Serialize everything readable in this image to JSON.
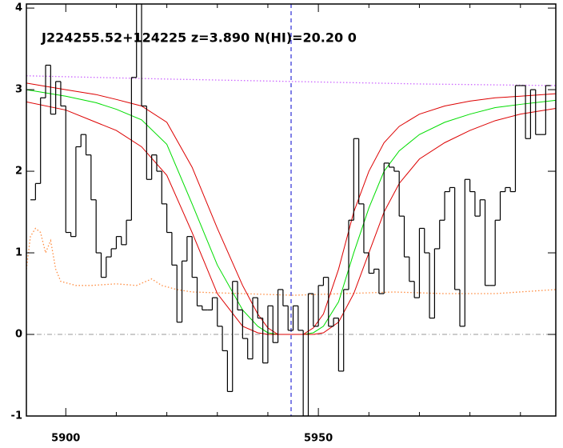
{
  "chart_data": {
    "type": "step",
    "title": "J224255.52+124225 z=3.890 N(HI)=20.20 0",
    "xlim": [
      5892.2,
      5997
    ],
    "ylim": [
      -1,
      4.05
    ],
    "xticks": [
      5900,
      5950
    ],
    "xminor_ticks": [
      5910,
      5920,
      5930,
      5940,
      5960,
      5970,
      5980,
      5990
    ],
    "yticks": [
      -1,
      0,
      1,
      2,
      3,
      4
    ],
    "spectrum": {
      "color": "#000000",
      "bins": [
        5893,
        5894,
        5895,
        5896,
        5897,
        5898,
        5899,
        5900,
        5901,
        5902,
        5903,
        5904,
        5905,
        5906,
        5907,
        5908,
        5909,
        5910,
        5911,
        5912,
        5913,
        5914,
        5915,
        5916,
        5917,
        5918,
        5919,
        5920,
        5921,
        5922,
        5923,
        5924,
        5925,
        5926,
        5927,
        5928,
        5929,
        5930,
        5931,
        5932,
        5933,
        5934,
        5935,
        5936,
        5937,
        5938,
        5939,
        5940,
        5941,
        5942,
        5943,
        5944,
        5945,
        5946,
        5947,
        5948,
        5949,
        5950,
        5951,
        5952,
        5953,
        5954,
        5955,
        5956,
        5957,
        5958,
        5959,
        5960,
        5961,
        5962,
        5963,
        5964,
        5965,
        5966,
        5967,
        5968,
        5969,
        5970,
        5971,
        5972,
        5973,
        5974,
        5975,
        5976,
        5977,
        5978,
        5979,
        5980,
        5981,
        5982,
        5983,
        5984,
        5985,
        5986,
        5987,
        5988,
        5989,
        5990,
        5991,
        5992,
        5993,
        5994,
        5995,
        5996
      ],
      "values": [
        1.65,
        1.85,
        2.9,
        3.3,
        2.7,
        3.1,
        2.8,
        1.25,
        1.2,
        2.3,
        2.45,
        2.2,
        1.65,
        1.0,
        0.7,
        0.95,
        1.05,
        1.2,
        1.1,
        1.4,
        3.15,
        4.1,
        2.8,
        1.9,
        2.2,
        2.0,
        1.6,
        1.25,
        0.85,
        0.15,
        0.9,
        1.2,
        0.7,
        0.35,
        0.3,
        0.3,
        0.45,
        0.1,
        -0.2,
        -0.7,
        0.65,
        0.3,
        -0.05,
        -0.3,
        0.45,
        0.2,
        -0.35,
        0.35,
        -0.1,
        0.55,
        0.35,
        0.05,
        0.35,
        0.05,
        -1.0,
        0.5,
        0.1,
        0.6,
        0.7,
        0.1,
        0.2,
        -0.45,
        0.55,
        1.4,
        2.4,
        1.6,
        1.0,
        0.75,
        0.8,
        0.5,
        2.1,
        2.05,
        2.0,
        1.45,
        0.95,
        0.65,
        0.45,
        1.3,
        1.0,
        0.2,
        1.05,
        1.4,
        1.75,
        1.8,
        0.55,
        0.1,
        1.9,
        1.75,
        1.45,
        1.65,
        0.6,
        0.6,
        1.4,
        1.75,
        1.8,
        1.75,
        3.05,
        3.05,
        2.4,
        3.0,
        2.45,
        2.45,
        3.05
      ]
    },
    "series": [
      {
        "color": "#cc66ff",
        "style": "dotted",
        "x": [
          5892.2,
          5920,
          5945,
          5970,
          5997
        ],
        "values": [
          3.17,
          3.13,
          3.1,
          3.07,
          3.05
        ]
      },
      {
        "color": "#ff8c40",
        "style": "dotted",
        "x": [
          5892.2,
          5893,
          5894,
          5895,
          5896,
          5897,
          5898,
          5899,
          5902,
          5905,
          5910,
          5914,
          5917,
          5919,
          5922,
          5925,
          5935,
          5945,
          5955,
          5965,
          5975,
          5985,
          5997
        ],
        "values": [
          0.8,
          1.2,
          1.3,
          1.25,
          1.0,
          1.15,
          0.8,
          0.65,
          0.6,
          0.6,
          0.62,
          0.6,
          0.68,
          0.6,
          0.55,
          0.52,
          0.5,
          0.48,
          0.5,
          0.52,
          0.5,
          0.5,
          0.55
        ]
      },
      {
        "color": "#00dd00",
        "style": "solid",
        "x": [
          5892.2,
          5900,
          5906,
          5910,
          5915,
          5920,
          5925,
          5930,
          5935,
          5938,
          5940,
          5942,
          5947,
          5949,
          5951,
          5954,
          5957,
          5960,
          5963,
          5966,
          5970,
          5975,
          5980,
          5985,
          5990,
          5997
        ],
        "values": [
          3.0,
          2.92,
          2.84,
          2.76,
          2.63,
          2.33,
          1.6,
          0.85,
          0.3,
          0.1,
          0.02,
          0,
          0,
          0.02,
          0.1,
          0.4,
          1.0,
          1.55,
          2.0,
          2.25,
          2.45,
          2.6,
          2.7,
          2.78,
          2.82,
          2.87
        ]
      },
      {
        "color": "#dd0000",
        "style": "solid",
        "x": [
          5892.2,
          5900,
          5906,
          5910,
          5915,
          5920,
          5925,
          5930,
          5935,
          5938,
          5940,
          5942,
          5947,
          5949,
          5951,
          5954,
          5957,
          5960,
          5963,
          5966,
          5970,
          5975,
          5980,
          5985,
          5990,
          5997
        ],
        "values": [
          3.08,
          3.0,
          2.94,
          2.88,
          2.8,
          2.6,
          2.05,
          1.3,
          0.6,
          0.25,
          0.08,
          0,
          0,
          0.08,
          0.25,
          0.8,
          1.5,
          2.0,
          2.35,
          2.55,
          2.7,
          2.8,
          2.86,
          2.9,
          2.92,
          2.95
        ]
      },
      {
        "color": "#dd0000",
        "style": "solid",
        "x": [
          5892.2,
          5900,
          5906,
          5910,
          5915,
          5920,
          5925,
          5930,
          5935,
          5938,
          5940,
          5949,
          5951,
          5954,
          5957,
          5960,
          5963,
          5966,
          5970,
          5975,
          5980,
          5985,
          5990,
          5997
        ],
        "values": [
          2.85,
          2.75,
          2.6,
          2.5,
          2.3,
          1.95,
          1.25,
          0.5,
          0.1,
          0.02,
          0,
          0,
          0.02,
          0.15,
          0.5,
          1.0,
          1.5,
          1.85,
          2.15,
          2.35,
          2.5,
          2.62,
          2.7,
          2.77
        ]
      }
    ],
    "vline": {
      "x": 5944.6,
      "color": "#0000cc"
    },
    "hline": {
      "y": 0,
      "color": "#999999"
    }
  }
}
